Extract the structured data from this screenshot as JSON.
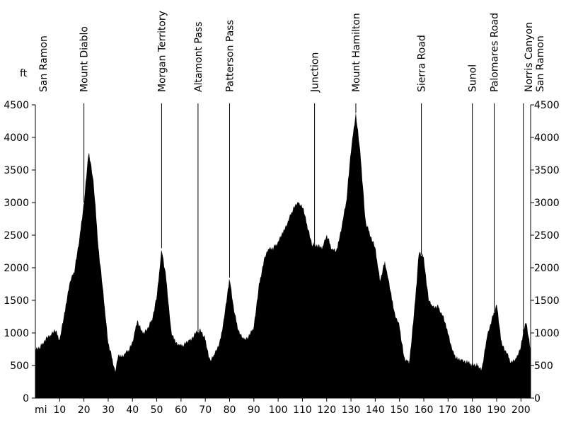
{
  "chart_data": {
    "type": "area",
    "units": {
      "y": "ft",
      "x": "mi"
    },
    "xlim": [
      0,
      204
    ],
    "ylim": [
      0,
      4500
    ],
    "yticks": [
      0,
      500,
      1000,
      1500,
      2000,
      2500,
      3000,
      3500,
      4000,
      4500
    ],
    "xticks": [
      10,
      20,
      30,
      40,
      50,
      60,
      70,
      80,
      90,
      100,
      110,
      120,
      130,
      140,
      150,
      160,
      170,
      180,
      190,
      200
    ],
    "waypoints": [
      {
        "name": "San Ramon",
        "mile": 1,
        "marker": false
      },
      {
        "name": "Mount Diablo",
        "mile": 20,
        "marker": true
      },
      {
        "name": "Morgan Territory",
        "mile": 52,
        "marker": true
      },
      {
        "name": "Altamont Pass",
        "mile": 67,
        "marker": true
      },
      {
        "name": "Patterson Pass",
        "mile": 80,
        "marker": true
      },
      {
        "name": "Junction",
        "mile": 115,
        "marker": true
      },
      {
        "name": "Mount Hamilton",
        "mile": 132,
        "marker": true
      },
      {
        "name": "Sierra Road",
        "mile": 159,
        "marker": true
      },
      {
        "name": "Sunol",
        "mile": 180,
        "marker": true
      },
      {
        "name": "Palomares Road",
        "mile": 189,
        "marker": true
      },
      {
        "name": "Norris Canyon",
        "mile": 201,
        "marker": true
      },
      {
        "name": "San Ramon",
        "mile": 204,
        "marker": false
      }
    ],
    "elevation": {
      "x": [
        0,
        2,
        4,
        6,
        8,
        10,
        12,
        14,
        16,
        18,
        20,
        22,
        24,
        26,
        28,
        30,
        32,
        33,
        34,
        36,
        38,
        40,
        42,
        44,
        46,
        48,
        50,
        52,
        54,
        56,
        58,
        60,
        62,
        64,
        66,
        68,
        70,
        72,
        74,
        76,
        78,
        80,
        82,
        84,
        86,
        88,
        90,
        92,
        94,
        96,
        98,
        100,
        102,
        104,
        106,
        108,
        110,
        112,
        114,
        116,
        118,
        120,
        122,
        124,
        126,
        128,
        130,
        132,
        134,
        136,
        138,
        140,
        142,
        144,
        146,
        148,
        150,
        152,
        154,
        156,
        158,
        160,
        162,
        164,
        166,
        168,
        170,
        172,
        174,
        176,
        178,
        180,
        182,
        184,
        186,
        188,
        190,
        192,
        194,
        196,
        198,
        200,
        202,
        204
      ],
      "y": [
        750,
        780,
        900,
        960,
        1050,
        900,
        1300,
        1750,
        1950,
        2400,
        3000,
        3800,
        3300,
        2300,
        1600,
        850,
        550,
        400,
        650,
        650,
        720,
        850,
        1200,
        1000,
        1050,
        1200,
        1550,
        2300,
        1800,
        1000,
        850,
        800,
        850,
        900,
        1000,
        1050,
        900,
        560,
        700,
        850,
        1300,
        1850,
        1300,
        1000,
        900,
        950,
        1100,
        1700,
        2100,
        2300,
        2300,
        2400,
        2550,
        2700,
        2900,
        3000,
        2950,
        2650,
        2350,
        2350,
        2300,
        2500,
        2300,
        2250,
        2600,
        3000,
        3800,
        4380,
        3700,
        2700,
        2500,
        2300,
        1800,
        2100,
        1700,
        1300,
        1100,
        600,
        550,
        1300,
        2250,
        2150,
        1500,
        1400,
        1400,
        1250,
        1000,
        700,
        600,
        580,
        550,
        520,
        500,
        450,
        950,
        1200,
        1450,
        850,
        700,
        550,
        600,
        800,
        1200,
        750
      ]
    }
  }
}
